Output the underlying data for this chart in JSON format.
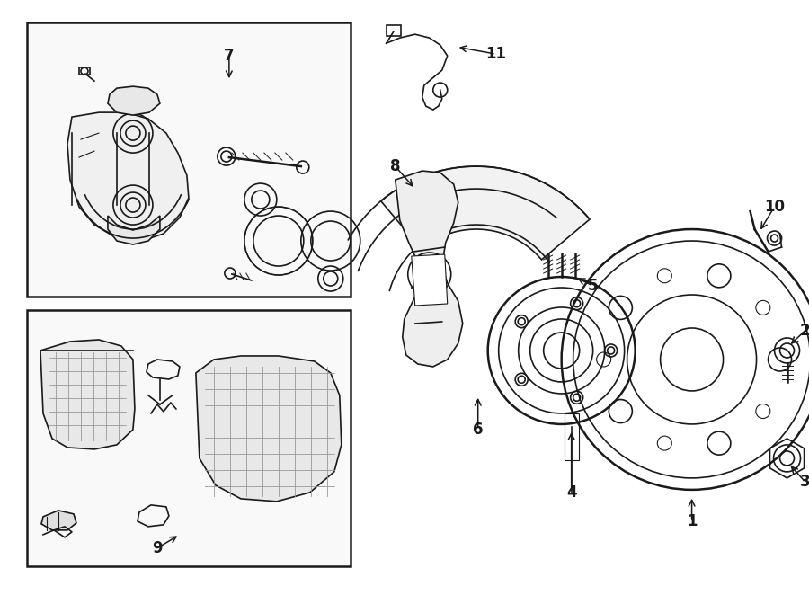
{
  "bg_color": "#ffffff",
  "fig_width": 9.0,
  "fig_height": 6.62,
  "color": "#1a1a1a"
}
